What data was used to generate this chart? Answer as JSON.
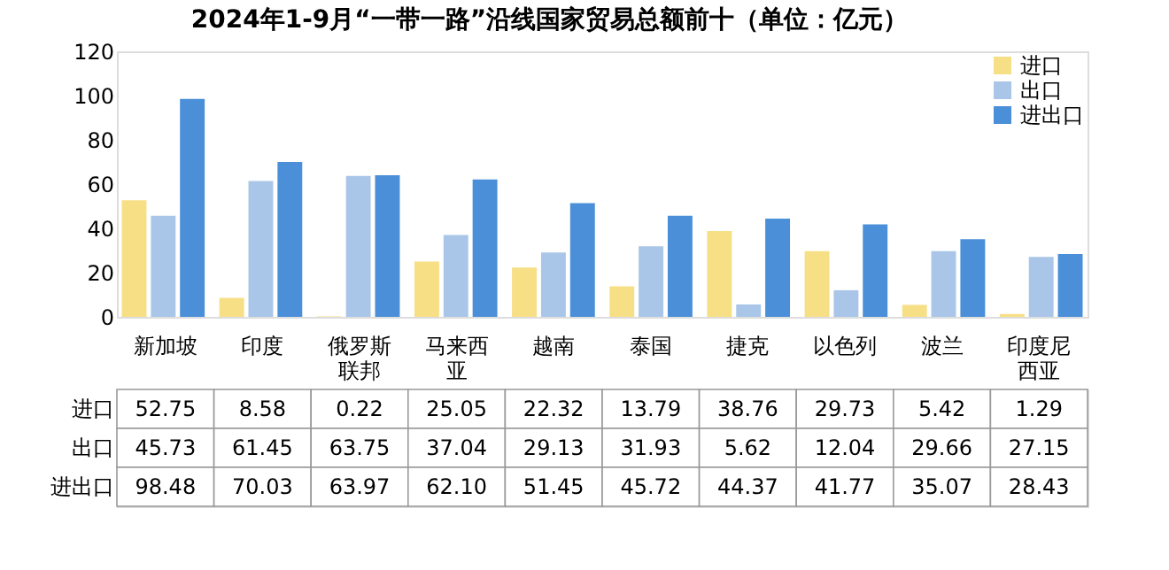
{
  "chart_data": {
    "type": "bar",
    "title": "2024年1-9月“一带一路”沿线国家贸易总额前十（单位：亿元）",
    "categories": [
      "新加坡",
      "印度",
      "俄罗斯联邦",
      "马来西亚",
      "越南",
      "泰国",
      "捷克",
      "以色列",
      "波兰",
      "印度尼西亚"
    ],
    "series": [
      {
        "name": "进口",
        "color": "#f7df86",
        "values": [
          52.75,
          8.58,
          0.22,
          25.05,
          22.32,
          13.79,
          38.76,
          29.73,
          5.42,
          1.29
        ],
        "value_labels": [
          "52.75",
          "8.58",
          "0.22",
          "25.05",
          "22.32",
          "13.79",
          "38.76",
          "29.73",
          "5.42",
          "1.29"
        ]
      },
      {
        "name": "出口",
        "color": "#a9c6e8",
        "values": [
          45.73,
          61.45,
          63.75,
          37.04,
          29.13,
          31.93,
          5.62,
          12.04,
          29.66,
          27.15
        ],
        "value_labels": [
          "45.73",
          "61.45",
          "63.75",
          "37.04",
          "29.13",
          "31.93",
          "5.62",
          "12.04",
          "29.66",
          "27.15"
        ]
      },
      {
        "name": "进出口",
        "color": "#4a8fd8",
        "values": [
          98.48,
          70.03,
          63.97,
          62.1,
          51.45,
          45.72,
          44.37,
          41.77,
          35.07,
          28.43
        ],
        "value_labels": [
          "98.48",
          "70.03",
          "63.97",
          "62.10",
          "51.45",
          "45.72",
          "44.37",
          "41.77",
          "35.07",
          "28.43"
        ]
      }
    ],
    "ylim": [
      0,
      120
    ],
    "yticks": [
      0,
      20,
      40,
      60,
      80,
      100,
      120
    ],
    "grid": false,
    "legend": "top right"
  }
}
